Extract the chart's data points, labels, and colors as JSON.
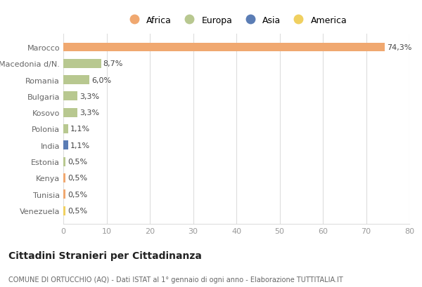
{
  "categories": [
    "Venezuela",
    "Tunisia",
    "Kenya",
    "Estonia",
    "India",
    "Polonia",
    "Kosovo",
    "Bulgaria",
    "Romania",
    "Macedonia d/N.",
    "Marocco"
  ],
  "values": [
    0.5,
    0.5,
    0.5,
    0.5,
    1.1,
    1.1,
    3.3,
    3.3,
    6.0,
    8.7,
    74.3
  ],
  "labels": [
    "0,5%",
    "0,5%",
    "0,5%",
    "0,5%",
    "1,1%",
    "1,1%",
    "3,3%",
    "3,3%",
    "6,0%",
    "8,7%",
    "74,3%"
  ],
  "colors": [
    "#f0d060",
    "#f0a870",
    "#f0a870",
    "#b8c890",
    "#5b7db5",
    "#b8c890",
    "#b8c890",
    "#b8c890",
    "#b8c890",
    "#b8c890",
    "#f0a870"
  ],
  "continent_colors": {
    "Africa": "#f0a870",
    "Europa": "#b8c890",
    "Asia": "#5b7db5",
    "America": "#f0d060"
  },
  "legend_order": [
    "Africa",
    "Europa",
    "Asia",
    "America"
  ],
  "xlim": [
    0,
    80
  ],
  "xticks": [
    0,
    10,
    20,
    30,
    40,
    50,
    60,
    70,
    80
  ],
  "title": "Cittadini Stranieri per Cittadinanza",
  "subtitle": "COMUNE DI ORTUCCHIO (AQ) - Dati ISTAT al 1° gennaio di ogni anno - Elaborazione TUTTITALIA.IT",
  "background_color": "#ffffff",
  "grid_color": "#dddddd"
}
